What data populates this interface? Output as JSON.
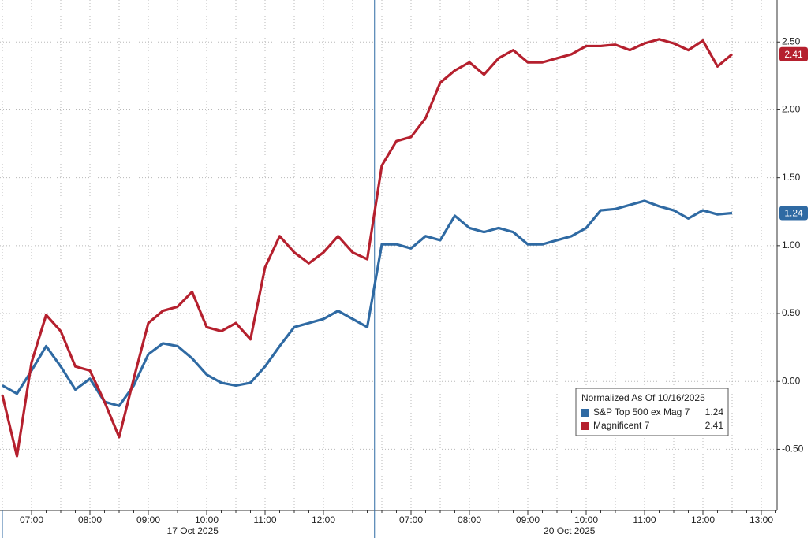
{
  "chart_data": {
    "type": "line",
    "legend_title": "Normalized As Of 10/16/2025",
    "categories": [
      null,
      null,
      "07:00",
      null,
      null,
      null,
      "08:00",
      null,
      null,
      null,
      "09:00",
      null,
      null,
      null,
      "10:00",
      null,
      null,
      null,
      "11:00",
      null,
      null,
      null,
      "12:00",
      null,
      null,
      null,
      null,
      null,
      "07:00",
      null,
      null,
      null,
      "08:00",
      null,
      null,
      null,
      "09:00",
      null,
      null,
      null,
      "10:00",
      null,
      null,
      null,
      "11:00",
      null,
      null,
      null,
      "12:00",
      null,
      null,
      null,
      "13:00",
      null
    ],
    "date_labels": [
      "17 Oct 2025",
      "20 Oct 2025"
    ],
    "series": [
      {
        "name": "S&P Top 500 ex Mag 7",
        "color": "#2f6aa3",
        "values": [
          -0.03,
          -0.09,
          0.08,
          0.26,
          0.11,
          -0.06,
          0.02,
          -0.15,
          -0.18,
          -0.03,
          0.2,
          0.28,
          0.26,
          0.17,
          0.05,
          -0.01,
          -0.03,
          -0.01,
          0.11,
          0.26,
          0.4,
          0.43,
          0.46,
          0.52,
          0.46,
          0.4,
          1.01,
          1.01,
          0.98,
          1.07,
          1.04,
          1.22,
          1.13,
          1.1,
          1.13,
          1.1,
          1.01,
          1.01,
          1.04,
          1.07,
          1.13,
          1.26,
          1.27,
          1.3,
          1.33,
          1.29,
          1.26,
          1.2,
          1.26,
          1.23,
          1.24,
          null,
          null,
          null
        ]
      },
      {
        "name": "Magnificent 7",
        "color": "#b5202e",
        "values": [
          -0.1,
          -0.55,
          0.14,
          0.49,
          0.37,
          0.11,
          0.08,
          -0.15,
          -0.41,
          0.02,
          0.43,
          0.52,
          0.55,
          0.66,
          0.4,
          0.37,
          0.43,
          0.31,
          0.84,
          1.07,
          0.95,
          0.87,
          0.95,
          1.07,
          0.95,
          0.9,
          1.59,
          1.77,
          1.8,
          1.94,
          2.2,
          2.29,
          2.35,
          2.26,
          2.38,
          2.44,
          2.35,
          2.35,
          2.38,
          2.41,
          2.47,
          2.47,
          2.48,
          2.44,
          2.49,
          2.52,
          2.49,
          2.44,
          2.51,
          2.32,
          2.41,
          null,
          null,
          null
        ]
      }
    ],
    "ylim": [
      -0.95,
      2.78
    ],
    "yticks": [
      {
        "value": -0.5,
        "label": "-0.50"
      },
      {
        "value": 0,
        "label": "0.00"
      },
      {
        "value": 0.5,
        "label": "0.50"
      },
      {
        "value": 1,
        "label": "1.00"
      },
      {
        "value": 1.5,
        "label": "1.50"
      },
      {
        "value": 2,
        "label": "2.00"
      },
      {
        "value": 2.5,
        "label": "2.50"
      }
    ],
    "grid": true
  }
}
